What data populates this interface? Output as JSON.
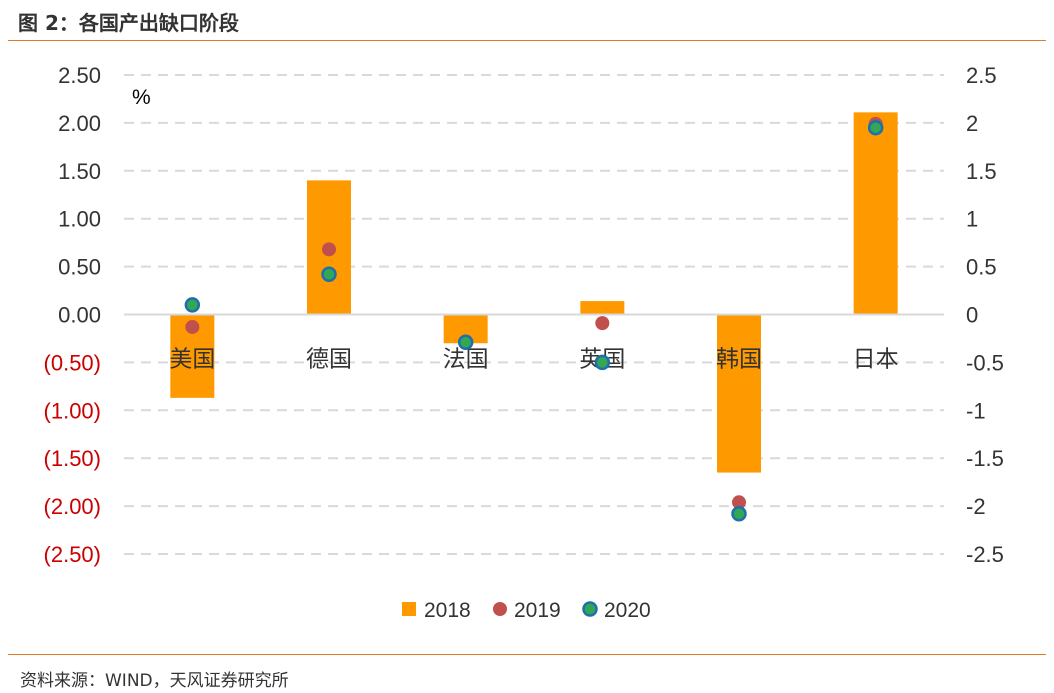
{
  "figure": {
    "title": "图 2：各国产出缺口阶段",
    "source": "资料来源：WIND，天风证券研究所"
  },
  "colors": {
    "bar": "#FF9900",
    "s2019": "#C0504D",
    "s2020_fill": "#33A852",
    "s2020_stroke": "#1F6FAF",
    "negative_label": "#CC0000",
    "tick": "#333333",
    "grid": "#D9D9D9",
    "rule": "#E07B2C"
  },
  "chart_data": {
    "type": "bar",
    "title": "各国产出缺口阶段",
    "unit_label": "%",
    "categories": [
      "美国",
      "德国",
      "法国",
      "英国",
      "韩国",
      "日本"
    ],
    "series": [
      {
        "name": "2018",
        "kind": "bar",
        "values": [
          -0.87,
          1.4,
          -0.3,
          0.14,
          -1.65,
          2.11
        ]
      },
      {
        "name": "2019",
        "kind": "marker",
        "values": [
          -0.13,
          0.68,
          -0.29,
          -0.09,
          -1.96,
          1.99
        ]
      },
      {
        "name": "2020",
        "kind": "marker",
        "values": [
          0.1,
          0.42,
          -0.29,
          -0.5,
          -2.08,
          1.95
        ]
      }
    ],
    "ylim": [
      -2.5,
      2.5
    ],
    "yticks": [
      2.5,
      2.0,
      1.5,
      1.0,
      0.5,
      0.0,
      -0.5,
      -1.0,
      -1.5,
      -2.0,
      -2.5
    ],
    "left_tick_labels": [
      "2.50",
      "2.00",
      "1.50",
      "1.00",
      "0.50",
      "0.00",
      "(0.50)",
      "(1.00)",
      "(1.50)",
      "(2.00)",
      "(2.50)"
    ],
    "right_tick_labels": [
      "2.5",
      "2",
      "1.5",
      "1",
      "0.5",
      "0",
      "-0.5",
      "-1",
      "-1.5",
      "-2",
      "-2.5"
    ],
    "legend": [
      "2018",
      "2019",
      "2020"
    ],
    "legend_position": "bottom",
    "grid": true
  }
}
